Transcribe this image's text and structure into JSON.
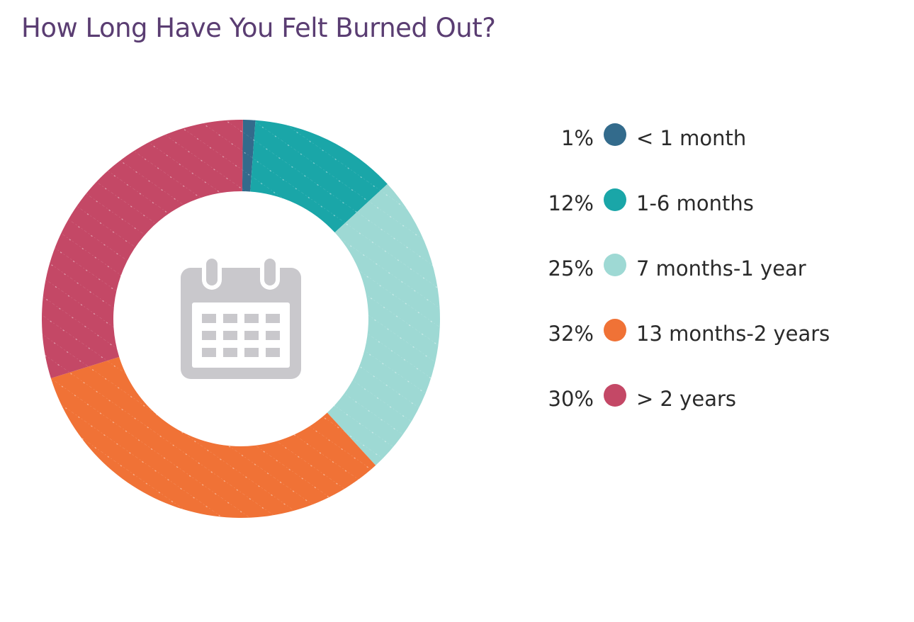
{
  "title": "How Long Have You Felt Burned Out?",
  "center_icon": "calendar-icon",
  "chart_data": {
    "type": "pie",
    "variant": "donut",
    "title": "How Long Have You Felt Burned Out?",
    "categories": [
      "< 1 month",
      "1-6 months",
      "7 months-1 year",
      "13 months-2 years",
      "> 2 years"
    ],
    "values": [
      1,
      12,
      25,
      32,
      30
    ],
    "value_labels": [
      "1%",
      "12%",
      "25%",
      "32%",
      "30%"
    ],
    "colors": [
      "#336b8c",
      "#1aa6a8",
      "#9ed9d4",
      "#f07236",
      "#c44866"
    ],
    "legend_position": "right",
    "start_angle_deg": 0,
    "direction": "clockwise"
  },
  "legend": [
    {
      "pct": "1%",
      "label": "< 1 month",
      "color": "#336b8c"
    },
    {
      "pct": "12%",
      "label": "1-6 months",
      "color": "#1aa6a8"
    },
    {
      "pct": "25%",
      "label": "7 months-1 year",
      "color": "#9ed9d4"
    },
    {
      "pct": "32%",
      "label": "13 months-2 years",
      "color": "#f07236"
    },
    {
      "pct": "30%",
      "label": "> 2 years",
      "color": "#c44866"
    }
  ]
}
